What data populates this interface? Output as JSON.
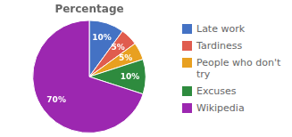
{
  "chart_data": {
    "type": "pie",
    "title": "Percentage",
    "categories": [
      "Late work",
      "Tardiness",
      "People who don't\ntry",
      "Excuses",
      "Wikipedia"
    ],
    "values": [
      10,
      5,
      5,
      10,
      70
    ],
    "value_labels": [
      "10%",
      "5%",
      "5%",
      "10%",
      "70%"
    ],
    "data_labels": true,
    "colors": [
      "#4472c4",
      "#e05c4e",
      "#e8a020",
      "#2e8b3e",
      "#9c27b0"
    ]
  }
}
